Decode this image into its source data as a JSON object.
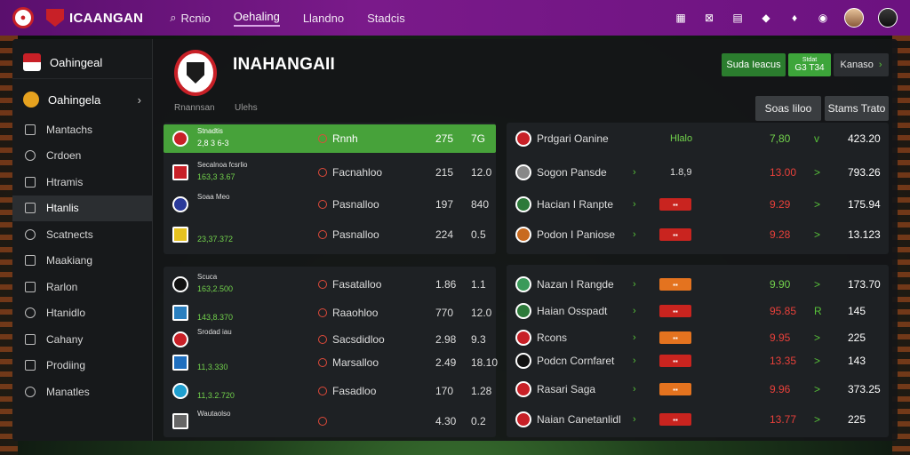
{
  "topbar": {
    "brand": "ICAANGAN",
    "nav": [
      {
        "label": "Rcnio",
        "icon": "search-icon"
      },
      {
        "label": "Oehaling",
        "active": true
      },
      {
        "label": "Llandno"
      },
      {
        "label": "Stadcis"
      }
    ]
  },
  "sidebar": {
    "title": "Oahingeal",
    "club": "Oahingela",
    "items": [
      {
        "label": "Mantachs",
        "icon": "calendar-icon"
      },
      {
        "label": "Crdoen",
        "icon": "clock-icon"
      },
      {
        "label": "Htramis",
        "icon": "list-icon"
      },
      {
        "label": "Htanlis",
        "icon": "users-icon",
        "active": true
      },
      {
        "label": "Scatnects",
        "icon": "chart-icon"
      },
      {
        "label": "Maakiang",
        "icon": "message-icon"
      },
      {
        "label": "Rarlon",
        "icon": "document-icon"
      },
      {
        "label": "Htanidlo",
        "icon": "trophy-icon"
      },
      {
        "label": "Cahany",
        "icon": "folder-icon"
      },
      {
        "label": "Prodiing",
        "icon": "info-icon"
      },
      {
        "label": "Manatles",
        "icon": "settings-icon"
      }
    ]
  },
  "header": {
    "title": "INAHANGAII",
    "sub1": "Rnannsan",
    "sub2": "Ulehs",
    "btn_a": "Suda Ieacus",
    "btn_b_top": "Stdat",
    "btn_b": "G3 T34",
    "btn_c": "Kanaso",
    "btn_d": "Soas Iiloo",
    "btn_e": "Stams Trato"
  },
  "left_rows": [
    {
      "code": "CTN",
      "name1": "Stnadtis",
      "num1": "2,8  3 6-3",
      "mid": "Rnnh",
      "a": "275",
      "b": "7G",
      "hl": true
    },
    {
      "code": "ALK",
      "name1": "Secalnoa fcsrlio",
      "num1": "163,3 3.67",
      "mid": "Facnahloo",
      "a": "215",
      "b": "12.0"
    },
    {
      "code": "BRD",
      "name1": "Soaa Meo",
      "num1": "",
      "mid": "Pasnalloo",
      "a": "197",
      "b": "840"
    },
    {
      "code": "NAM",
      "name1": "",
      "num1": "23,37.372",
      "mid": "Pasnalloo",
      "a": "224",
      "b": "0.5"
    },
    {
      "code": "DRE",
      "name1": "Scuca",
      "num1": "163,2.500",
      "mid": "Fasatalloo",
      "a": "1.86",
      "b": "1.1"
    },
    {
      "code": "KOS",
      "name1": "",
      "num1": "143,8.370",
      "mid": "Raaohloo",
      "a": "770",
      "b": "12.0"
    },
    {
      "code": "PIN",
      "name1": "Srodad iau",
      "num1": "",
      "mid": "Sacsdidloo",
      "a": "2.98",
      "b": "9.3"
    },
    {
      "code": "MAS",
      "name1": "",
      "num1": "11,3.330",
      "mid": "Marsalloo",
      "a": "2.49",
      "b": "18.10"
    },
    {
      "code": "BAL",
      "name1": "",
      "num1": "11,3.2.720",
      "mid": "Fasadloo",
      "a": "170",
      "b": "1.28"
    },
    {
      "code": "LEN",
      "name1": "Wautaolso",
      "num1": "",
      "mid": "",
      "a": "4.30",
      "b": "0.2"
    }
  ],
  "right_rows": [
    {
      "name": "Prdgari Oanine",
      "s1": "Hlalo",
      "s2": "7,80",
      "s3": "423.20",
      "tag": "",
      "sign": "v"
    },
    {
      "name": "Sogon Pansde",
      "s1": "1.8,9",
      "s2": "13.00",
      "s3": "793.26",
      "tag": "",
      "sign": ">"
    },
    {
      "name": "Hacian I Ranpte",
      "s1": "",
      "s2": "9.29",
      "s3": "175.94",
      "tag": "red",
      "sign": ">"
    },
    {
      "name": "Podon I Paniose",
      "s1": "",
      "s2": "9.28",
      "s3": "13.123",
      "tag": "red",
      "sign": ">"
    },
    {
      "name": "Nazan I Rangde",
      "s1": "",
      "s2": "9.90",
      "s3": "173.70",
      "tag": "orange",
      "sign": ">"
    },
    {
      "name": "Haian Osspadt",
      "s1": "",
      "s2": "95.85",
      "s3": "145",
      "tag": "red",
      "sign": "R"
    },
    {
      "name": "Rcons",
      "s1": "",
      "s2": "9.95",
      "s3": "225",
      "tag": "orange",
      "sign": ">"
    },
    {
      "name": "Podcn Cornfaret",
      "s1": "",
      "s2": "13.35",
      "s3": "143",
      "tag": "red",
      "sign": ">"
    },
    {
      "name": "Rasari Saga",
      "s1": "",
      "s2": "9.96",
      "s3": "373.25",
      "tag": "orange",
      "sign": ">"
    },
    {
      "name": "Naian Canetanlidl",
      "s1": "",
      "s2": "13.77",
      "s3": "225",
      "tag": "red",
      "sign": ">"
    }
  ]
}
